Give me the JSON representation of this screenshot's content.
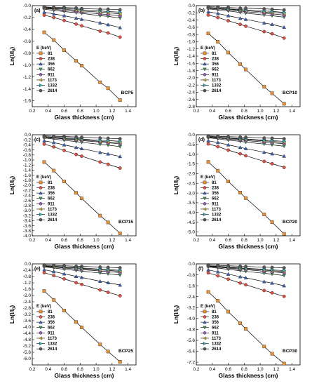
{
  "figure": {
    "legend_title": "E (keV)",
    "legend_entries": [
      "81",
      "238",
      "356",
      "662",
      "911",
      "1173",
      "1332",
      "2614"
    ],
    "series_colors": [
      "#f28e2b",
      "#e74c3c",
      "#2f62c9",
      "#2e9e4a",
      "#9b59b6",
      "#e0b020",
      "#25b6c9",
      "#555555"
    ],
    "series_markers": [
      "square",
      "circle",
      "triangle-up",
      "triangle-down",
      "circle",
      "triangle-left",
      "triangle-right",
      "circle"
    ]
  },
  "chart_data": [
    {
      "type": "line",
      "panel_label": "(a)",
      "sample": "BCP5",
      "xlabel": "Glass thickness (cm)",
      "ylabel": "Ln(I/I₀)",
      "xlim": [
        0.2,
        1.5
      ],
      "ylim": [
        -1.7,
        0.0
      ],
      "xticks": [
        0.2,
        0.4,
        0.6,
        0.8,
        1.0,
        1.2,
        1.4
      ],
      "yticks": [
        0.0,
        -0.2,
        -0.4,
        -0.6,
        -0.8,
        -1.0,
        -1.2,
        -1.4,
        -1.6
      ],
      "x": [
        0.35,
        0.47,
        0.6,
        0.75,
        0.82,
        1.05,
        1.15,
        1.3
      ],
      "series": [
        {
          "name": "81",
          "values": [
            -0.45,
            -0.58,
            -0.75,
            -0.93,
            -1.01,
            -1.29,
            -1.39,
            -1.59
          ]
        },
        {
          "name": "238",
          "values": [
            -0.16,
            -0.2,
            -0.25,
            -0.31,
            -0.34,
            -0.43,
            -0.46,
            -0.53
          ]
        },
        {
          "name": "356",
          "values": [
            -0.11,
            -0.14,
            -0.17,
            -0.21,
            -0.23,
            -0.29,
            -0.32,
            -0.37
          ]
        },
        {
          "name": "662",
          "values": [
            -0.06,
            -0.08,
            -0.1,
            -0.12,
            -0.13,
            -0.17,
            -0.18,
            -0.21
          ]
        },
        {
          "name": "911",
          "values": [
            -0.05,
            -0.06,
            -0.08,
            -0.1,
            -0.11,
            -0.14,
            -0.15,
            -0.17
          ]
        },
        {
          "name": "1173",
          "values": [
            -0.04,
            -0.05,
            -0.06,
            -0.08,
            -0.09,
            -0.11,
            -0.12,
            -0.14
          ]
        },
        {
          "name": "1332",
          "values": [
            -0.03,
            -0.04,
            -0.05,
            -0.06,
            -0.07,
            -0.09,
            -0.1,
            -0.11
          ]
        },
        {
          "name": "2614",
          "values": [
            -0.02,
            -0.03,
            -0.03,
            -0.04,
            -0.05,
            -0.06,
            -0.06,
            -0.07
          ]
        }
      ]
    },
    {
      "type": "line",
      "panel_label": "(b)",
      "sample": "BCP10",
      "xlabel": "Glass thickness (cm)",
      "ylabel": "Ln(I/I₀)",
      "xlim": [
        0.2,
        1.5
      ],
      "ylim": [
        -2.8,
        0.0
      ],
      "xticks": [
        0.2,
        0.4,
        0.6,
        0.8,
        1.0,
        1.2,
        1.4
      ],
      "yticks": [
        0.0,
        -0.2,
        -0.4,
        -0.6,
        -0.8,
        -1.0,
        -1.2,
        -1.4,
        -1.6,
        -1.8,
        -2.0,
        -2.2,
        -2.4,
        -2.6,
        -2.8
      ],
      "x": [
        0.35,
        0.47,
        0.6,
        0.75,
        0.82,
        1.05,
        1.15,
        1.3
      ],
      "series": [
        {
          "name": "81",
          "values": [
            -0.77,
            -1.0,
            -1.3,
            -1.62,
            -1.77,
            -2.25,
            -2.43,
            -2.72
          ]
        },
        {
          "name": "238",
          "values": [
            -0.26,
            -0.33,
            -0.42,
            -0.52,
            -0.57,
            -0.72,
            -0.78,
            -0.9
          ]
        },
        {
          "name": "356",
          "values": [
            -0.17,
            -0.22,
            -0.28,
            -0.35,
            -0.38,
            -0.48,
            -0.52,
            -0.6
          ]
        },
        {
          "name": "662",
          "values": [
            -0.09,
            -0.12,
            -0.15,
            -0.19,
            -0.21,
            -0.26,
            -0.28,
            -0.32
          ]
        },
        {
          "name": "911",
          "values": [
            -0.07,
            -0.09,
            -0.12,
            -0.15,
            -0.17,
            -0.21,
            -0.23,
            -0.26
          ]
        },
        {
          "name": "1173",
          "values": [
            -0.06,
            -0.08,
            -0.1,
            -0.13,
            -0.14,
            -0.18,
            -0.19,
            -0.22
          ]
        },
        {
          "name": "1332",
          "values": [
            -0.05,
            -0.07,
            -0.09,
            -0.11,
            -0.12,
            -0.15,
            -0.16,
            -0.19
          ]
        },
        {
          "name": "2614",
          "values": [
            -0.03,
            -0.04,
            -0.05,
            -0.07,
            -0.07,
            -0.09,
            -0.1,
            -0.12
          ]
        }
      ]
    },
    {
      "type": "line",
      "panel_label": "(c)",
      "sample": "BCP15",
      "xlabel": "Glass thickness (cm)",
      "ylabel": "Ln(I/I₀)",
      "xlim": [
        0.2,
        1.5
      ],
      "ylim": [
        -4.0,
        0.0
      ],
      "xticks": [
        0.2,
        0.4,
        0.6,
        0.8,
        1.0,
        1.2,
        1.4
      ],
      "yticks": [
        0.0,
        -0.2,
        -0.4,
        -0.6,
        -0.8,
        -1.0,
        -1.2,
        -1.4,
        -1.6,
        -1.8,
        -2.0,
        -2.2,
        -2.4,
        -2.6,
        -2.8,
        -3.0,
        -3.2,
        -3.4,
        -3.6,
        -3.8,
        -4.0
      ],
      "x": [
        0.35,
        0.47,
        0.6,
        0.75,
        0.82,
        1.05,
        1.15,
        1.3
      ],
      "series": [
        {
          "name": "81",
          "values": [
            -1.08,
            -1.42,
            -1.85,
            -2.3,
            -2.52,
            -3.2,
            -3.47,
            -3.9
          ]
        },
        {
          "name": "238",
          "values": [
            -0.37,
            -0.48,
            -0.62,
            -0.78,
            -0.85,
            -1.08,
            -1.17,
            -1.32
          ]
        },
        {
          "name": "356",
          "values": [
            -0.24,
            -0.31,
            -0.4,
            -0.5,
            -0.55,
            -0.7,
            -0.76,
            -0.86
          ]
        },
        {
          "name": "662",
          "values": [
            -0.13,
            -0.17,
            -0.22,
            -0.27,
            -0.3,
            -0.38,
            -0.41,
            -0.47
          ]
        },
        {
          "name": "911",
          "values": [
            -0.1,
            -0.13,
            -0.17,
            -0.21,
            -0.23,
            -0.29,
            -0.32,
            -0.36
          ]
        },
        {
          "name": "1173",
          "values": [
            -0.09,
            -0.11,
            -0.15,
            -0.18,
            -0.2,
            -0.26,
            -0.28,
            -0.31
          ]
        },
        {
          "name": "1332",
          "values": [
            -0.07,
            -0.1,
            -0.12,
            -0.15,
            -0.17,
            -0.22,
            -0.23,
            -0.26
          ]
        },
        {
          "name": "2614",
          "values": [
            -0.04,
            -0.06,
            -0.07,
            -0.09,
            -0.1,
            -0.13,
            -0.14,
            -0.16
          ]
        }
      ]
    },
    {
      "type": "line",
      "panel_label": "(d)",
      "sample": "BCP20",
      "xlabel": "Glass thickness (cm)",
      "ylabel": "Ln(I/I₀)",
      "xlim": [
        0.2,
        1.5
      ],
      "ylim": [
        -5.2,
        0.0
      ],
      "xticks": [
        0.2,
        0.4,
        0.6,
        0.8,
        1.0,
        1.2,
        1.4
      ],
      "yticks": [
        0.0,
        -0.5,
        -1.0,
        -1.5,
        -2.0,
        -2.5,
        -3.0,
        -3.5,
        -4.0,
        -4.5,
        -5.0
      ],
      "x": [
        0.35,
        0.47,
        0.6,
        0.75,
        0.82,
        1.05,
        1.15,
        1.3
      ],
      "series": [
        {
          "name": "81",
          "values": [
            -1.4,
            -1.85,
            -2.4,
            -2.98,
            -3.26,
            -4.1,
            -4.5,
            -5.1
          ]
        },
        {
          "name": "238",
          "values": [
            -0.47,
            -0.61,
            -0.79,
            -0.98,
            -1.08,
            -1.37,
            -1.49,
            -1.68
          ]
        },
        {
          "name": "356",
          "values": [
            -0.31,
            -0.4,
            -0.52,
            -0.65,
            -0.71,
            -0.9,
            -0.98,
            -1.1
          ]
        },
        {
          "name": "662",
          "values": [
            -0.16,
            -0.21,
            -0.28,
            -0.34,
            -0.38,
            -0.48,
            -0.52,
            -0.59
          ]
        },
        {
          "name": "911",
          "values": [
            -0.13,
            -0.17,
            -0.22,
            -0.27,
            -0.3,
            -0.38,
            -0.41,
            -0.46
          ]
        },
        {
          "name": "1173",
          "values": [
            -0.11,
            -0.14,
            -0.18,
            -0.23,
            -0.25,
            -0.32,
            -0.34,
            -0.39
          ]
        },
        {
          "name": "1332",
          "values": [
            -0.09,
            -0.12,
            -0.16,
            -0.2,
            -0.22,
            -0.28,
            -0.3,
            -0.34
          ]
        },
        {
          "name": "2614",
          "values": [
            -0.06,
            -0.08,
            -0.1,
            -0.12,
            -0.13,
            -0.17,
            -0.18,
            -0.21
          ]
        }
      ]
    },
    {
      "type": "line",
      "panel_label": "(e)",
      "sample": "BCP25",
      "xlabel": "Glass thickness (cm)",
      "ylabel": "Ln(I/I₀)",
      "xlim": [
        0.2,
        1.5
      ],
      "ylim": [
        -6.4,
        0.0
      ],
      "xticks": [
        0.2,
        0.4,
        0.6,
        0.8,
        1.0,
        1.2,
        1.4
      ],
      "yticks": [
        0.0,
        -0.4,
        -0.8,
        -1.2,
        -1.6,
        -2.0,
        -2.4,
        -2.8,
        -3.2,
        -3.6,
        -4.0,
        -4.4,
        -4.8,
        -5.2,
        -5.6,
        -6.0
      ],
      "x": [
        0.35,
        0.47,
        0.6,
        0.75,
        0.82,
        1.05,
        1.15,
        1.3
      ],
      "series": [
        {
          "name": "81",
          "values": [
            -1.72,
            -2.28,
            -2.95,
            -3.68,
            -4.02,
            -5.1,
            -5.55,
            -6.2
          ]
        },
        {
          "name": "238",
          "values": [
            -0.56,
            -0.74,
            -0.95,
            -1.19,
            -1.3,
            -1.65,
            -1.8,
            -2.02
          ]
        },
        {
          "name": "356",
          "values": [
            -0.37,
            -0.49,
            -0.63,
            -0.79,
            -0.86,
            -1.1,
            -1.19,
            -1.34
          ]
        },
        {
          "name": "662",
          "values": [
            -0.2,
            -0.26,
            -0.34,
            -0.42,
            -0.46,
            -0.58,
            -0.63,
            -0.71
          ]
        },
        {
          "name": "911",
          "values": [
            -0.15,
            -0.2,
            -0.26,
            -0.33,
            -0.36,
            -0.45,
            -0.49,
            -0.55
          ]
        },
        {
          "name": "1173",
          "values": [
            -0.13,
            -0.17,
            -0.22,
            -0.27,
            -0.3,
            -0.38,
            -0.41,
            -0.47
          ]
        },
        {
          "name": "1332",
          "values": [
            -0.11,
            -0.15,
            -0.19,
            -0.24,
            -0.26,
            -0.33,
            -0.36,
            -0.41
          ]
        },
        {
          "name": "2614",
          "values": [
            -0.07,
            -0.09,
            -0.12,
            -0.15,
            -0.16,
            -0.2,
            -0.22,
            -0.25
          ]
        }
      ]
    },
    {
      "type": "line",
      "panel_label": "(f)",
      "sample": "BCP30",
      "xlabel": "Glass thickness (cm)",
      "ylabel": "Ln(I/I₀)",
      "xlim": [
        0.2,
        1.5
      ],
      "ylim": [
        -7.4,
        0.0
      ],
      "xticks": [
        0.2,
        0.4,
        0.6,
        0.8,
        1.0,
        1.2,
        1.4
      ],
      "yticks": [
        0.0,
        -0.8,
        -1.6,
        -2.4,
        -3.2,
        -4.0,
        -4.8,
        -5.6,
        -6.4,
        -7.2
      ],
      "x": [
        0.35,
        0.47,
        0.6,
        0.75,
        0.82,
        1.05,
        1.15,
        1.3
      ],
      "series": [
        {
          "name": "81",
          "values": [
            -2.05,
            -2.7,
            -3.5,
            -4.35,
            -4.76,
            -6.05,
            -6.58,
            -7.3
          ]
        },
        {
          "name": "238",
          "values": [
            -0.66,
            -0.87,
            -1.12,
            -1.4,
            -1.53,
            -1.95,
            -2.12,
            -2.38
          ]
        },
        {
          "name": "356",
          "values": [
            -0.44,
            -0.58,
            -0.75,
            -0.94,
            -1.02,
            -1.3,
            -1.41,
            -1.6
          ]
        },
        {
          "name": "662",
          "values": [
            -0.23,
            -0.31,
            -0.4,
            -0.5,
            -0.55,
            -0.69,
            -0.75,
            -0.85
          ]
        },
        {
          "name": "911",
          "values": [
            -0.18,
            -0.24,
            -0.31,
            -0.39,
            -0.42,
            -0.54,
            -0.58,
            -0.66
          ]
        },
        {
          "name": "1173",
          "values": [
            -0.16,
            -0.21,
            -0.27,
            -0.33,
            -0.36,
            -0.46,
            -0.5,
            -0.56
          ]
        },
        {
          "name": "1332",
          "values": [
            -0.14,
            -0.18,
            -0.23,
            -0.29,
            -0.32,
            -0.4,
            -0.44,
            -0.49
          ]
        },
        {
          "name": "2614",
          "values": [
            -0.08,
            -0.11,
            -0.14,
            -0.17,
            -0.19,
            -0.24,
            -0.26,
            -0.29
          ]
        }
      ]
    }
  ]
}
